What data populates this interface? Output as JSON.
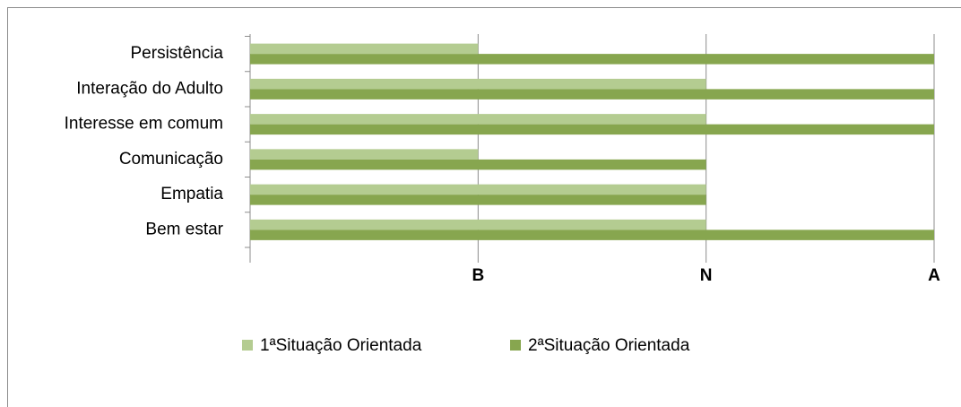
{
  "chart_data": {
    "type": "barh",
    "categories": [
      "Persistência",
      "Interação do Adulto",
      "Interesse em comum",
      "Comunicação",
      "Empatia",
      "Bem estar"
    ],
    "series": [
      {
        "name": "1ªSituação Orientada",
        "color": "#b4cc91",
        "values": [
          1,
          2,
          2,
          1,
          2,
          2
        ]
      },
      {
        "name": "2ªSituação Orientada",
        "color": "#87a64f",
        "values": [
          3,
          3,
          3,
          2,
          2,
          3
        ]
      }
    ],
    "xlim": [
      0,
      3
    ],
    "xticks": [
      {
        "value": 1,
        "label": "B"
      },
      {
        "value": 2,
        "label": "N"
      },
      {
        "value": 3,
        "label": "A"
      }
    ],
    "grid": true
  }
}
